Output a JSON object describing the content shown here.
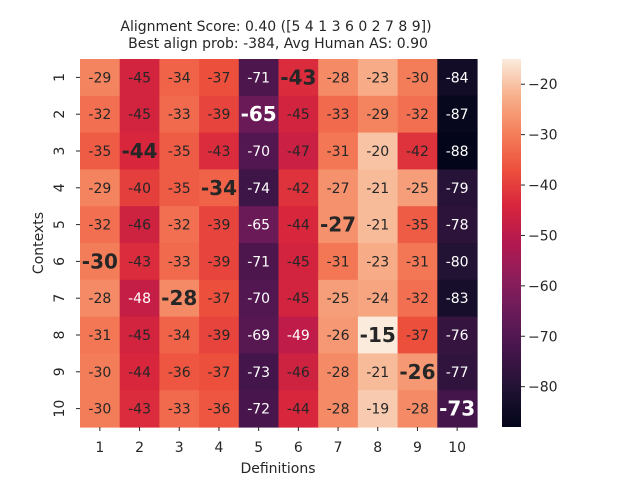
{
  "chart_data": {
    "type": "heatmap",
    "title": "Alignment Score: 0.40 ([5 4 1 3 6 0 2 7 8 9])",
    "subtitle": "Best align prob: -384, Avg Human AS: 0.90",
    "xlabel": "Definitions",
    "ylabel": "Contexts",
    "x_categories": [
      "1",
      "2",
      "3",
      "4",
      "5",
      "6",
      "7",
      "8",
      "9",
      "10"
    ],
    "y_categories": [
      "1",
      "2",
      "3",
      "4",
      "5",
      "6",
      "7",
      "8",
      "9",
      "10"
    ],
    "values": [
      [
        -29,
        -45,
        -34,
        -37,
        -71,
        -43,
        -28,
        -23,
        -30,
        -84
      ],
      [
        -32,
        -45,
        -33,
        -39,
        -65,
        -45,
        -33,
        -29,
        -32,
        -87
      ],
      [
        -35,
        -44,
        -35,
        -43,
        -70,
        -47,
        -31,
        -20,
        -42,
        -88
      ],
      [
        -29,
        -40,
        -35,
        -34,
        -74,
        -42,
        -27,
        -21,
        -25,
        -79
      ],
      [
        -32,
        -46,
        -32,
        -39,
        -65,
        -44,
        -27,
        -21,
        -35,
        -78
      ],
      [
        -30,
        -43,
        -33,
        -39,
        -71,
        -45,
        -31,
        -23,
        -31,
        -80
      ],
      [
        -28,
        -48,
        -28,
        -37,
        -70,
        -45,
        -25,
        -24,
        -32,
        -83
      ],
      [
        -31,
        -45,
        -34,
        -39,
        -69,
        -49,
        -26,
        -15,
        -37,
        -76
      ],
      [
        -30,
        -44,
        -36,
        -37,
        -73,
        -46,
        -28,
        -21,
        -26,
        -77
      ],
      [
        -30,
        -43,
        -33,
        -36,
        -72,
        -44,
        -28,
        -19,
        -28,
        -73
      ]
    ],
    "highlighted_columns": [
      5,
      4,
      1,
      3,
      6,
      0,
      2,
      7,
      8,
      9
    ],
    "colorbar": {
      "vmin": -88,
      "vmax": -15,
      "ticks": [
        -20,
        -30,
        -40,
        -50,
        -60,
        -70,
        -80
      ],
      "colormap": "rocket"
    },
    "grid": false
  }
}
